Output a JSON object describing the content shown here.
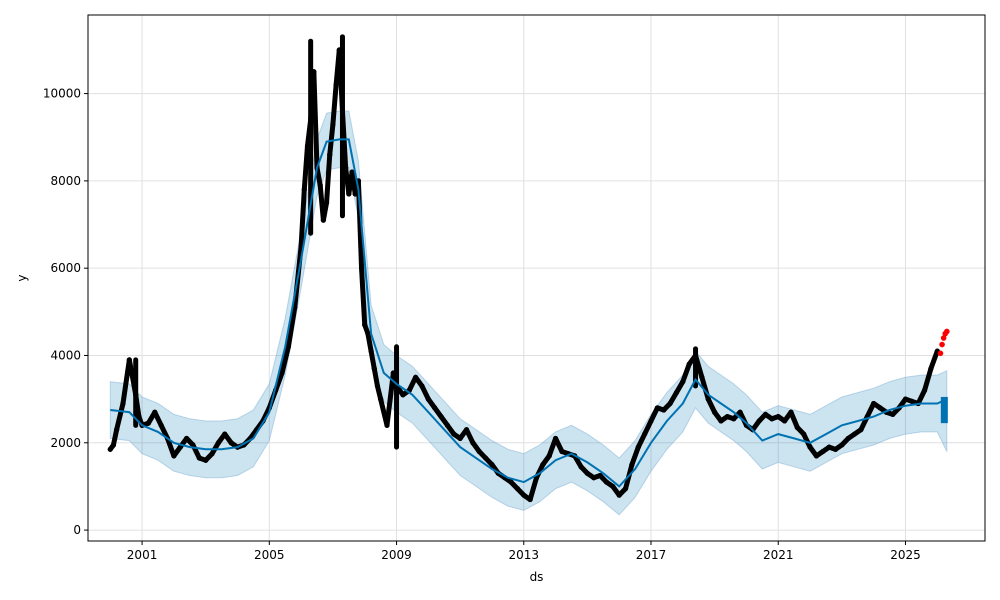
{
  "chart_data": {
    "type": "scatter",
    "title": "",
    "xlabel": "ds",
    "ylabel": "y",
    "xlim": [
      1999.3,
      2027.5
    ],
    "ylim": [
      -250,
      11800
    ],
    "x_ticks": [
      2001,
      2005,
      2009,
      2013,
      2017,
      2021,
      2025
    ],
    "x_tick_labels": [
      "2001",
      "2005",
      "2009",
      "2013",
      "2017",
      "2021",
      "2025"
    ],
    "y_ticks": [
      0,
      2000,
      4000,
      6000,
      8000,
      10000
    ],
    "y_tick_labels": [
      "0",
      "2000",
      "4000",
      "6000",
      "8000",
      "10000"
    ],
    "grid": true,
    "colors": {
      "observed": "#000000",
      "forecast_line": "#0072B2",
      "uncertainty": "#0072B2",
      "future_actual": "#ff0000"
    },
    "series": [
      {
        "role": "observed",
        "marker": "dot",
        "x": [
          2000.0,
          2000.1,
          2000.2,
          2000.4,
          2000.6,
          2000.8,
          2000.9,
          2001.0,
          2001.2,
          2001.4,
          2001.6,
          2001.8,
          2002.0,
          2002.2,
          2002.4,
          2002.6,
          2002.8,
          2003.0,
          2003.2,
          2003.4,
          2003.6,
          2003.8,
          2004.0,
          2004.2,
          2004.4,
          2004.6,
          2004.8,
          2005.0,
          2005.2,
          2005.4,
          2005.6,
          2005.8,
          2006.0,
          2006.1,
          2006.2,
          2006.3,
          2006.4,
          2006.5,
          2006.6,
          2006.7,
          2006.8,
          2006.9,
          2007.0,
          2007.1,
          2007.2,
          2007.3,
          2007.4,
          2007.5,
          2007.6,
          2007.7,
          2007.8,
          2007.9,
          2008.0,
          2008.1,
          2008.2,
          2008.3,
          2008.4,
          2008.5,
          2008.7,
          2008.9,
          2009.0,
          2009.2,
          2009.4,
          2009.6,
          2009.8,
          2010.0,
          2010.2,
          2010.4,
          2010.6,
          2010.8,
          2011.0,
          2011.2,
          2011.4,
          2011.6,
          2011.8,
          2012.0,
          2012.2,
          2012.4,
          2012.6,
          2012.8,
          2013.0,
          2013.2,
          2013.4,
          2013.6,
          2013.8,
          2014.0,
          2014.2,
          2014.4,
          2014.6,
          2014.8,
          2015.0,
          2015.2,
          2015.4,
          2015.6,
          2015.8,
          2016.0,
          2016.2,
          2016.4,
          2016.6,
          2016.8,
          2017.0,
          2017.2,
          2017.4,
          2017.6,
          2017.8,
          2018.0,
          2018.2,
          2018.4,
          2018.6,
          2018.8,
          2019.0,
          2019.2,
          2019.4,
          2019.6,
          2019.8,
          2020.0,
          2020.2,
          2020.4,
          2020.6,
          2020.8,
          2021.0,
          2021.2,
          2021.4,
          2021.6,
          2021.8,
          2022.0,
          2022.2,
          2022.4,
          2022.6,
          2022.8,
          2023.0,
          2023.2,
          2023.4,
          2023.6,
          2023.8,
          2024.0,
          2024.2,
          2024.4,
          2024.6,
          2024.8,
          2025.0,
          2025.2,
          2025.4,
          2025.6,
          2025.8,
          2026.0
        ],
        "y": [
          1850,
          1950,
          2300,
          2900,
          3900,
          3100,
          2600,
          2400,
          2450,
          2700,
          2400,
          2100,
          1700,
          1900,
          2100,
          1950,
          1650,
          1600,
          1750,
          2000,
          2200,
          2000,
          1900,
          1950,
          2100,
          2300,
          2500,
          2800,
          3200,
          3600,
          4200,
          5100,
          6500,
          7800,
          8800,
          9400,
          10500,
          8300,
          7900,
          7100,
          7500,
          8600,
          9300,
          10200,
          11000,
          9600,
          8300,
          7700,
          8200,
          7700,
          8000,
          6000,
          4700,
          4500,
          4100,
          3700,
          3300,
          3000,
          2400,
          3600,
          3300,
          3100,
          3200,
          3500,
          3300,
          3000,
          2800,
          2600,
          2400,
          2200,
          2100,
          2300,
          2000,
          1800,
          1650,
          1500,
          1300,
          1200,
          1100,
          950,
          800,
          700,
          1200,
          1500,
          1700,
          2100,
          1800,
          1750,
          1700,
          1450,
          1300,
          1200,
          1250,
          1100,
          1000,
          800,
          950,
          1500,
          1900,
          2200,
          2500,
          2800,
          2750,
          2900,
          3150,
          3400,
          3800,
          4000,
          3500,
          3000,
          2700,
          2500,
          2600,
          2550,
          2700,
          2400,
          2300,
          2500,
          2650,
          2550,
          2600,
          2500,
          2700,
          2350,
          2200,
          1900,
          1700,
          1800,
          1900,
          1850,
          1950,
          2100,
          2200,
          2300,
          2600,
          2900,
          2800,
          2700,
          2650,
          2800,
          3000,
          2950,
          2900,
          3200,
          3700,
          4100
        ],
        "label_bands": [
          {
            "x": 2000.8,
            "ylo": 2400,
            "yhi": 3900
          },
          {
            "x": 2006.3,
            "ylo": 6800,
            "yhi": 11200
          },
          {
            "x": 2007.3,
            "ylo": 7200,
            "yhi": 11300
          },
          {
            "x": 2009.0,
            "ylo": 1900,
            "yhi": 4200
          },
          {
            "x": 2018.4,
            "ylo": 3300,
            "yhi": 4150
          }
        ]
      },
      {
        "role": "forecast",
        "x": [
          2000.0,
          2000.6,
          2001.0,
          2001.5,
          2002.0,
          2002.5,
          2003.0,
          2003.5,
          2004.0,
          2004.5,
          2005.0,
          2005.5,
          2006.0,
          2006.5,
          2006.8,
          2007.2,
          2007.5,
          2007.8,
          2008.2,
          2008.6,
          2009.0,
          2009.5,
          2010.0,
          2010.5,
          2011.0,
          2011.5,
          2012.0,
          2012.5,
          2013.0,
          2013.5,
          2014.0,
          2014.5,
          2015.0,
          2015.5,
          2016.0,
          2016.5,
          2017.0,
          2017.5,
          2018.0,
          2018.4,
          2018.8,
          2019.2,
          2019.6,
          2020.0,
          2020.5,
          2021.0,
          2021.5,
          2022.0,
          2022.5,
          2023.0,
          2023.5,
          2024.0,
          2024.5,
          2025.0,
          2025.5,
          2026.0,
          2026.3
        ],
        "y": [
          2750,
          2700,
          2400,
          2250,
          2000,
          1900,
          1850,
          1850,
          1900,
          2100,
          2700,
          4200,
          6200,
          8300,
          8900,
          8950,
          8950,
          7800,
          4500,
          3600,
          3350,
          3100,
          2700,
          2300,
          1900,
          1650,
          1400,
          1200,
          1100,
          1300,
          1600,
          1750,
          1550,
          1300,
          1000,
          1400,
          2000,
          2500,
          2900,
          3450,
          3100,
          2900,
          2700,
          2450,
          2050,
          2200,
          2100,
          2000,
          2200,
          2400,
          2500,
          2600,
          2750,
          2850,
          2900,
          2900,
          3000
        ],
        "yhat_lower": [
          2100,
          2050,
          1750,
          1600,
          1350,
          1250,
          1200,
          1200,
          1250,
          1450,
          2050,
          3550,
          5550,
          7650,
          8250,
          8300,
          8300,
          7150,
          3850,
          2950,
          2700,
          2450,
          2050,
          1650,
          1250,
          1000,
          750,
          550,
          450,
          650,
          950,
          1100,
          900,
          650,
          350,
          750,
          1350,
          1850,
          2250,
          2800,
          2450,
          2250,
          2050,
          1800,
          1400,
          1550,
          1450,
          1350,
          1550,
          1750,
          1850,
          1950,
          2100,
          2200,
          2250,
          2250,
          1800
        ],
        "yhat_upper": [
          3400,
          3350,
          3050,
          2900,
          2650,
          2550,
          2500,
          2500,
          2550,
          2750,
          3350,
          4850,
          6850,
          8950,
          9550,
          9600,
          9600,
          8450,
          5150,
          4250,
          4000,
          3750,
          3350,
          2950,
          2550,
          2300,
          2050,
          1850,
          1750,
          1950,
          2250,
          2400,
          2200,
          1950,
          1650,
          2050,
          2650,
          3150,
          3550,
          4100,
          3750,
          3550,
          3350,
          3100,
          2700,
          2850,
          2750,
          2650,
          2850,
          3050,
          3150,
          3250,
          3400,
          3500,
          3550,
          3550,
          3650
        ]
      },
      {
        "role": "future_actual",
        "marker": "dot",
        "x": [
          2026.1,
          2026.15,
          2026.2,
          2026.25,
          2026.3
        ],
        "y": [
          4050,
          4250,
          4400,
          4500,
          4550
        ]
      }
    ]
  }
}
